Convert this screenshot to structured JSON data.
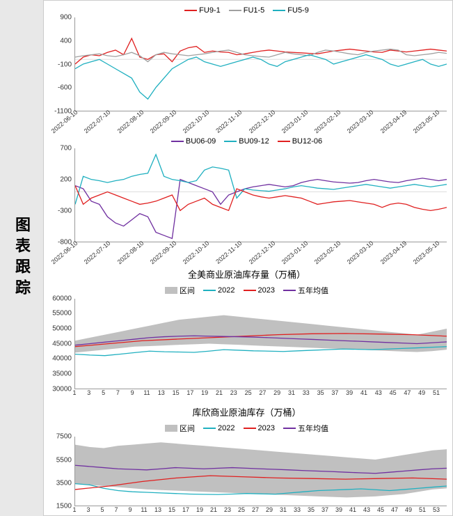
{
  "sidebar": {
    "title": "图表跟踪"
  },
  "chart1": {
    "type": "line",
    "legend": [
      {
        "label": "FU9-1",
        "color": "#e02020"
      },
      {
        "label": "FU1-5",
        "color": "#a0a0a0"
      },
      {
        "label": "FU5-9",
        "color": "#20b0c0"
      }
    ],
    "yticks": [
      900,
      400,
      -100,
      -600,
      -1100
    ],
    "ylim": [
      -1100,
      900
    ],
    "xticks": [
      "2022-06-10",
      "2022-07-10",
      "2022-08-10",
      "2022-09-10",
      "2022-10-10",
      "2022-11-10",
      "2022-12-10",
      "2023-01-10",
      "2023-02-10",
      "2023-03-10",
      "2023-04-19",
      "2023-05-10"
    ],
    "series": {
      "FU9-1": [
        -100,
        50,
        100,
        80,
        150,
        200,
        100,
        450,
        50,
        0,
        100,
        120,
        -50,
        180,
        250,
        280,
        150,
        180,
        160,
        150,
        100,
        120,
        150,
        180,
        200,
        180,
        160,
        150,
        140,
        130,
        120,
        150,
        180,
        200,
        220,
        200,
        180,
        160,
        150,
        200,
        180,
        160,
        180,
        200,
        220,
        200,
        180
      ],
      "FU1-5": [
        50,
        80,
        100,
        120,
        80,
        60,
        100,
        150,
        80,
        -50,
        100,
        150,
        120,
        100,
        80,
        100,
        120,
        150,
        180,
        200,
        150,
        100,
        80,
        60,
        50,
        100,
        150,
        120,
        100,
        80,
        150,
        200,
        180,
        150,
        120,
        100,
        150,
        180,
        200,
        220,
        200,
        100,
        80,
        100,
        120,
        150,
        130
      ],
      "FU5-9": [
        -200,
        -100,
        -50,
        0,
        -100,
        -200,
        -300,
        -400,
        -700,
        -850,
        -600,
        -400,
        -200,
        -100,
        0,
        50,
        -50,
        -100,
        -150,
        -100,
        -50,
        0,
        50,
        0,
        -100,
        -150,
        -50,
        0,
        50,
        100,
        50,
        0,
        -100,
        -50,
        0,
        50,
        100,
        50,
        0,
        -100,
        -150,
        -100,
        -50,
        0,
        -100,
        -150,
        -100
      ]
    }
  },
  "chart2": {
    "type": "line",
    "legend": [
      {
        "label": "BU06-09",
        "color": "#7030a0"
      },
      {
        "label": "BU09-12",
        "color": "#20b0c0"
      },
      {
        "label": "BU12-06",
        "color": "#e02020"
      }
    ],
    "yticks": [
      700,
      200,
      -300,
      -800
    ],
    "ylim": [
      -800,
      700
    ],
    "xticks": [
      "2022-06-10",
      "2022-07-10",
      "2022-08-10",
      "2022-09-10",
      "2022-10-10",
      "2022-11-10",
      "2022-12-10",
      "2023-01-10",
      "2023-02-10",
      "2023-03-10",
      "2023-04-19",
      "2023-05-10"
    ],
    "series": {
      "BU06-09": [
        100,
        50,
        -150,
        -200,
        -400,
        -500,
        -550,
        -450,
        -350,
        -400,
        -650,
        -700,
        -750,
        200,
        150,
        100,
        50,
        0,
        -200,
        -50,
        0,
        50,
        80,
        100,
        120,
        100,
        80,
        100,
        150,
        180,
        200,
        180,
        160,
        150,
        140,
        150,
        180,
        200,
        180,
        160,
        150,
        180,
        200,
        220,
        200,
        180,
        200
      ],
      "BU09-12": [
        -200,
        250,
        200,
        180,
        150,
        180,
        200,
        250,
        280,
        300,
        600,
        250,
        200,
        180,
        150,
        180,
        350,
        400,
        380,
        350,
        -100,
        50,
        30,
        20,
        10,
        30,
        50,
        80,
        100,
        80,
        60,
        50,
        40,
        60,
        80,
        100,
        120,
        100,
        80,
        60,
        80,
        100,
        120,
        100,
        80,
        100,
        120
      ],
      "BU12-06": [
        100,
        -200,
        -100,
        -50,
        0,
        -50,
        -100,
        -150,
        -200,
        -180,
        -150,
        -100,
        -50,
        -300,
        -200,
        -150,
        -100,
        -200,
        -250,
        -300,
        50,
        0,
        -50,
        -80,
        -100,
        -80,
        -60,
        -80,
        -100,
        -150,
        -200,
        -180,
        -160,
        -150,
        -140,
        -160,
        -180,
        -200,
        -250,
        -200,
        -180,
        -200,
        -250,
        -280,
        -300,
        -280,
        -250
      ]
    }
  },
  "chart3": {
    "type": "area-line",
    "title": "全美商业原油库存量（万桶）",
    "legend": [
      {
        "label": "区间",
        "type": "band"
      },
      {
        "label": "2022",
        "color": "#20b0c0"
      },
      {
        "label": "2023",
        "color": "#e02020"
      },
      {
        "label": "五年均值",
        "color": "#7030a0"
      }
    ],
    "yticks": [
      60000,
      55000,
      50000,
      45000,
      40000,
      35000,
      30000
    ],
    "ylim": [
      30000,
      60000
    ],
    "xticks": [
      1,
      3,
      5,
      7,
      9,
      11,
      13,
      15,
      17,
      19,
      21,
      23,
      25,
      27,
      29,
      31,
      33,
      35,
      37,
      39,
      41,
      43,
      45,
      47,
      49,
      51
    ],
    "band_upper": [
      46000,
      47000,
      48000,
      49000,
      50000,
      51000,
      52000,
      53000,
      53500,
      54000,
      54500,
      54000,
      53500,
      53000,
      52500,
      52000,
      51500,
      51000,
      50500,
      50000,
      49500,
      49000,
      48500,
      48000,
      49000,
      50000
    ],
    "band_lower": [
      42000,
      42500,
      43000,
      43500,
      44000,
      44200,
      44400,
      44600,
      44800,
      45000,
      44800,
      44600,
      44400,
      44200,
      44000,
      43800,
      43600,
      43400,
      43200,
      43000,
      42800,
      42600,
      42400,
      42200,
      42500,
      43000
    ],
    "series": {
      "2022": [
        41500,
        41200,
        41000,
        41500,
        42000,
        42500,
        42300,
        42200,
        42100,
        42500,
        43000,
        42800,
        42600,
        42500,
        42400,
        42600,
        42800,
        43000,
        43200,
        43100,
        43000,
        43200,
        43400,
        43600,
        43800,
        44000
      ],
      "2023": [
        44000,
        45000,
        46000,
        46500,
        47000,
        47500,
        48000,
        48300,
        48400,
        48200,
        48000,
        47500
      ],
      "五年均值": [
        44500,
        45000,
        45500,
        46000,
        46500,
        47000,
        47300,
        47500,
        47600,
        47500,
        47400,
        47300,
        47200,
        47000,
        46800,
        46600,
        46400,
        46200,
        46000,
        45800,
        45600,
        45400,
        45200,
        45000,
        45300,
        45600
      ]
    }
  },
  "chart4": {
    "type": "area-line",
    "title": "库欣商业原油库存（万桶）",
    "legend": [
      {
        "label": "区间",
        "type": "band"
      },
      {
        "label": "2022",
        "color": "#20b0c0"
      },
      {
        "label": "2023",
        "color": "#e02020"
      },
      {
        "label": "五年均值",
        "color": "#7030a0"
      }
    ],
    "yticks": [
      7500,
      5500,
      3500,
      1500
    ],
    "ylim": [
      1500,
      7500
    ],
    "xticks": [
      1,
      3,
      5,
      7,
      9,
      11,
      13,
      15,
      17,
      19,
      21,
      23,
      25,
      27,
      29,
      31,
      33,
      35,
      37,
      39,
      41,
      43,
      45,
      47,
      49,
      51,
      53
    ],
    "band_upper": [
      6800,
      6600,
      6500,
      6700,
      6800,
      6900,
      7000,
      6900,
      6800,
      6700,
      6600,
      6500,
      6400,
      6300,
      6200,
      6100,
      6000,
      5900,
      5800,
      5700,
      5600,
      5500,
      5700,
      5900,
      6100,
      6300,
      6400
    ],
    "band_lower": [
      3400,
      3300,
      3200,
      3100,
      3000,
      2900,
      2850,
      2800,
      2750,
      2700,
      2650,
      2600,
      2550,
      2500,
      2450,
      2400,
      2350,
      2300,
      2250,
      2200,
      2250,
      2300,
      2400,
      2500,
      2700,
      2900,
      3000
    ],
    "series": {
      "2022": [
        3400,
        3300,
        3000,
        2800,
        2700,
        2650,
        2600,
        2550,
        2500,
        2480,
        2460,
        2500,
        2550,
        2520,
        2490,
        2600,
        2700,
        2800,
        2850,
        2900,
        2950,
        2880,
        2800,
        2900,
        3000,
        3100,
        3200
      ],
      "2023": [
        2900,
        3200,
        3600,
        3900,
        4100,
        4000,
        3900,
        3850,
        3800,
        3850,
        3900,
        3800
      ],
      "五年均值": [
        5000,
        4900,
        4800,
        4700,
        4650,
        4600,
        4700,
        4800,
        4750,
        4700,
        4750,
        4800,
        4750,
        4700,
        4650,
        4600,
        4550,
        4500,
        4450,
        4400,
        4350,
        4300,
        4400,
        4500,
        4600,
        4700,
        4750
      ]
    }
  }
}
